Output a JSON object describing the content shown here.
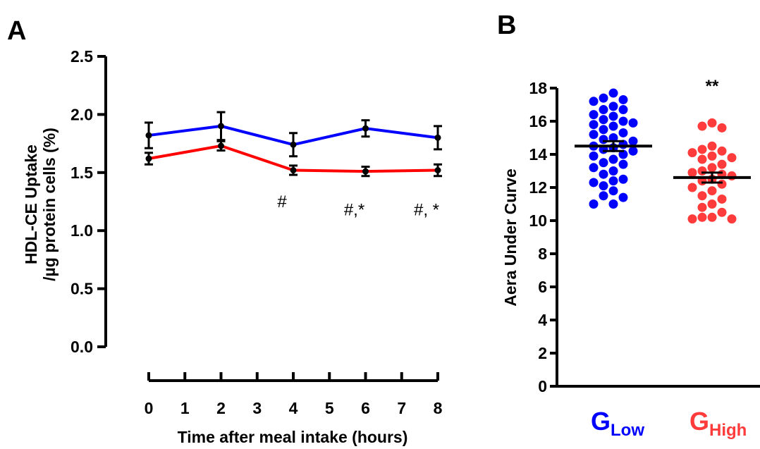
{
  "panels": {
    "a": {
      "label": "A"
    },
    "b": {
      "label": "B"
    }
  },
  "colors": {
    "low": "#0000ff",
    "high": "#ff0000",
    "high_points": "#ff3b3b",
    "axis": "#000000"
  },
  "chart_data": [
    {
      "type": "line",
      "title": "",
      "xlabel": "Time after meal intake (hours)",
      "ylabel_line1": "HDL-CE Uptake",
      "ylabel_line2": "/µg protein cells (%)",
      "xlim": [
        0,
        8
      ],
      "ylim": [
        0,
        2.5
      ],
      "x_ticks": [
        "0",
        "1",
        "2",
        "3",
        "4",
        "5",
        "6",
        "7",
        "8"
      ],
      "y_ticks": [
        "0.0",
        "0.5",
        "1.0",
        "1.5",
        "2.0",
        "2.5"
      ],
      "x": [
        0,
        2,
        4,
        6,
        8
      ],
      "series": [
        {
          "color": "#0000ff",
          "values": [
            1.82,
            1.9,
            1.74,
            1.88,
            1.8
          ],
          "errors": [
            0.11,
            0.12,
            0.1,
            0.07,
            0.1
          ]
        },
        {
          "color": "#ff0000",
          "values": [
            1.62,
            1.73,
            1.52,
            1.51,
            1.52
          ],
          "errors": [
            0.05,
            0.04,
            0.04,
            0.04,
            0.05
          ]
        }
      ],
      "annotations": [
        {
          "x": 4,
          "y": 1.25,
          "text": "#"
        },
        {
          "x": 6,
          "y": 1.18,
          "text": "#,*"
        },
        {
          "x": 8,
          "y": 1.18,
          "text": "#, *"
        }
      ]
    },
    {
      "type": "scatter",
      "title": "",
      "ylabel": "Aera Under Curve",
      "ylim": [
        0,
        18
      ],
      "y_ticks": [
        "0",
        "2",
        "4",
        "6",
        "8",
        "10",
        "12",
        "14",
        "16",
        "18"
      ],
      "groups": [
        {
          "name_main": "G",
          "name_sub": "Low",
          "color": "#0000ff",
          "mean": 14.5,
          "sem": 0.3,
          "values": [
            17.7,
            17.4,
            17.3,
            17.2,
            16.9,
            16.7,
            16.7,
            16.4,
            16.3,
            16.1,
            16.0,
            15.9,
            15.8,
            15.7,
            15.5,
            15.3,
            15.2,
            15.0,
            14.9,
            14.8,
            14.6,
            14.5,
            14.4,
            14.3,
            14.2,
            14.0,
            13.9,
            13.7,
            13.5,
            13.4,
            13.2,
            13.0,
            12.8,
            12.5,
            12.4,
            12.3,
            12.1,
            11.8,
            11.5,
            11.4,
            11.0,
            11.0
          ]
        },
        {
          "name_main": "G",
          "name_sub": "High",
          "color": "#ff3b3b",
          "mean": 12.6,
          "sem": 0.3,
          "values": [
            15.9,
            15.7,
            15.6,
            14.5,
            14.3,
            14.2,
            14.1,
            13.9,
            13.8,
            13.7,
            13.4,
            13.2,
            13.0,
            12.9,
            12.8,
            12.7,
            12.5,
            12.4,
            12.2,
            12.0,
            11.8,
            11.5,
            11.3,
            11.0,
            10.8,
            10.5,
            10.2,
            10.2,
            10.1,
            10.1
          ]
        }
      ],
      "significance": "**"
    }
  ]
}
